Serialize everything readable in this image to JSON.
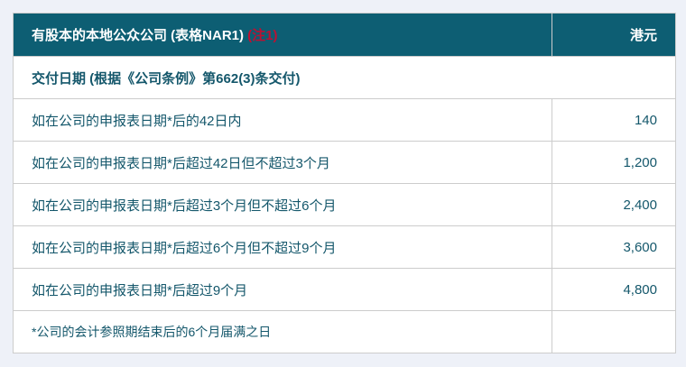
{
  "colors": {
    "page_background": "#eef1f8",
    "header_background": "#0d5e73",
    "header_text": "#ffffff",
    "note_red": "#bb1133",
    "body_text": "#14576b",
    "border": "#cccccc"
  },
  "table": {
    "header": {
      "title": "有股本的本地公众公司 (表格NAR1) ",
      "note": "(注1)",
      "currency": "港元"
    },
    "subheader": "交付日期 (根据《公司条例》第662(3)条交付)",
    "rows": [
      {
        "label": "如在公司的申报表日期*后的42日内",
        "fee": "140"
      },
      {
        "label": "如在公司的申报表日期*后超过42日但不超过3个月",
        "fee": "1,200"
      },
      {
        "label": "如在公司的申报表日期*后超过3个月但不超过6个月",
        "fee": "2,400"
      },
      {
        "label": "如在公司的申报表日期*后超过6个月但不超过9个月",
        "fee": "3,600"
      },
      {
        "label": "如在公司的申报表日期*后超过9个月",
        "fee": "4,800"
      }
    ],
    "footnote": "*公司的会计参照期结束后的6个月届满之日",
    "footnote_fee": ""
  }
}
